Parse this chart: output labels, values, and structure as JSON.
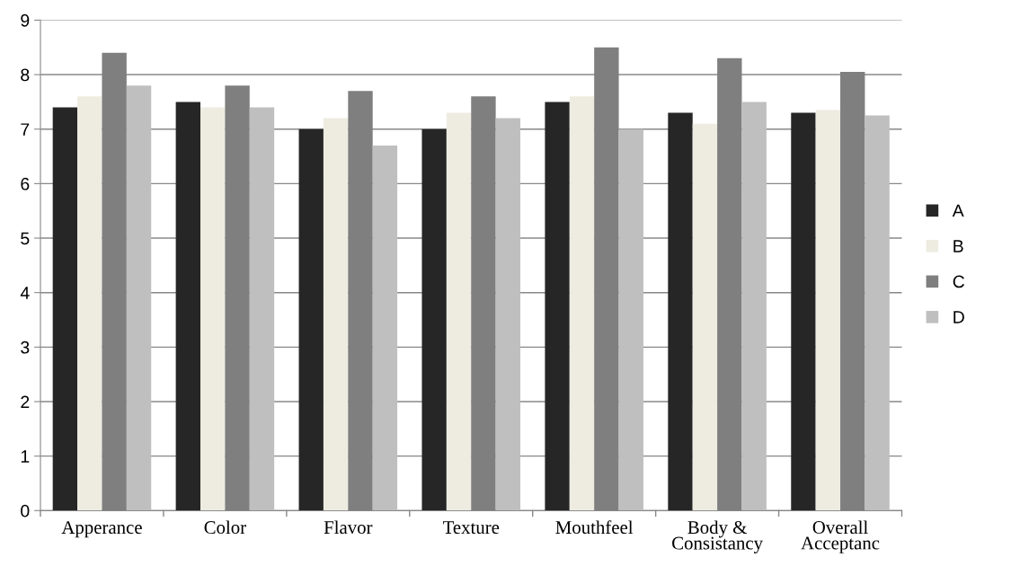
{
  "chart_data": {
    "type": "bar",
    "categories": [
      "Apperance",
      "Color",
      "Flavor",
      "Texture",
      "Mouthfeel",
      "Body &\nConsistancy",
      "Overall\nAcceptanc"
    ],
    "series": [
      {
        "name": "A",
        "color": "#262626",
        "values": [
          7.4,
          7.5,
          7.0,
          7.0,
          7.5,
          7.3,
          7.3
        ]
      },
      {
        "name": "B",
        "color": "#eeece1",
        "values": [
          7.6,
          7.4,
          7.2,
          7.3,
          7.6,
          7.1,
          7.35
        ]
      },
      {
        "name": "C",
        "color": "#7f7f7f",
        "values": [
          8.4,
          7.8,
          7.7,
          7.6,
          8.5,
          8.3,
          8.05
        ]
      },
      {
        "name": "D",
        "color": "#bfbfbf",
        "values": [
          7.8,
          7.4,
          6.7,
          7.2,
          7.0,
          7.5,
          7.25
        ]
      }
    ],
    "ylim": [
      0,
      9
    ],
    "yticks": [
      0,
      1,
      2,
      3,
      4,
      5,
      6,
      7,
      8,
      9
    ],
    "grid": "y",
    "legend": "right"
  }
}
